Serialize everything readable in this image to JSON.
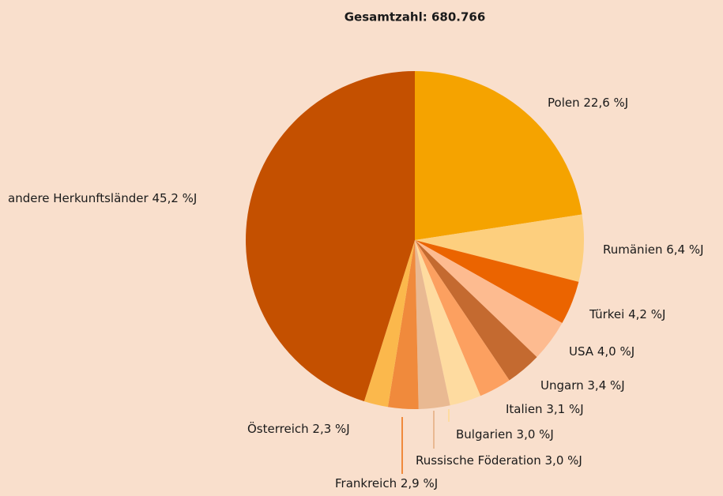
{
  "chart_data": {
    "type": "pie",
    "title": "Gesamtzahl: 680.766",
    "categories": [
      "Polen",
      "Rumänien",
      "Türkei",
      "USA",
      "Ungarn",
      "Italien",
      "Bulgarien",
      "Russische Föderation",
      "Frankreich",
      "Österreich",
      "andere Herkunftsländer"
    ],
    "values": [
      22.6,
      6.4,
      4.2,
      4.0,
      3.4,
      3.1,
      3.0,
      3.0,
      2.9,
      2.3,
      45.2
    ],
    "value_labels": [
      "22,6 %J",
      "6,4 %J",
      "4,2 %J",
      "4,0 %J",
      "3,4 %J",
      "3,1 %J",
      "3,0 %J",
      "3,0 %J",
      "2,9 %J",
      "2,3 %J",
      "45,2 %J"
    ],
    "colors": [
      "#f5a300",
      "#fdcf7e",
      "#eb6400",
      "#fdbb90",
      "#c46a30",
      "#fca060",
      "#fedba0",
      "#e9b992",
      "#f08a3c",
      "#fbb84c",
      "#c45000"
    ]
  }
}
